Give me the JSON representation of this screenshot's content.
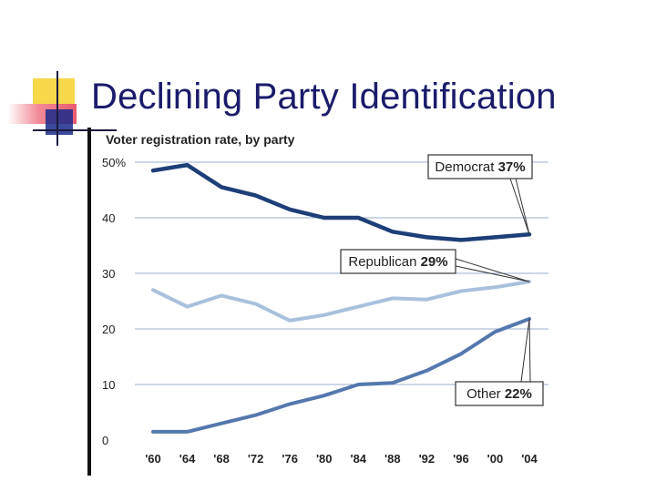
{
  "slide": {
    "title": "Declining Party Identification"
  },
  "colors": {
    "title_text": "#1b1b6b",
    "accent_yellow": "#f6d84a",
    "accent_red": "#e85a6e",
    "accent_blue": "#1a2a8a",
    "democrat": "#1d3f78",
    "republican": "#a9c0dc",
    "other": "#5478ad",
    "gridline": "#9aaed0",
    "axis_text": "#222222"
  },
  "chart_data": {
    "type": "line",
    "title": "Voter registration rate, by party",
    "categories": [
      "'60",
      "'64",
      "'68",
      "'72",
      "'76",
      "'80",
      "'84",
      "'88",
      "'92",
      "'96",
      "'00",
      "'04"
    ],
    "y_ticks": [
      "50%",
      "40",
      "30",
      "20",
      "10",
      "0"
    ],
    "ylim": [
      0,
      50
    ],
    "grid": true,
    "series": [
      {
        "key": "democrat",
        "name": "Democrat",
        "label_value": "37%",
        "values": [
          48.5,
          49.5,
          45.5,
          44,
          41.5,
          40,
          40,
          37.5,
          36.5,
          36,
          36.5,
          37
        ]
      },
      {
        "key": "republican",
        "name": "Republican",
        "label_value": "29%",
        "values": [
          27,
          24,
          26,
          24.5,
          21.5,
          22.5,
          24,
          25.5,
          25.3,
          26.8,
          27.5,
          28.5
        ]
      },
      {
        "key": "other",
        "name": "Other",
        "label_value": "22%",
        "values": [
          1.5,
          1.5,
          3,
          4.5,
          6.5,
          8,
          10,
          10.3,
          12.5,
          15.5,
          19.5,
          21.8
        ]
      }
    ]
  }
}
